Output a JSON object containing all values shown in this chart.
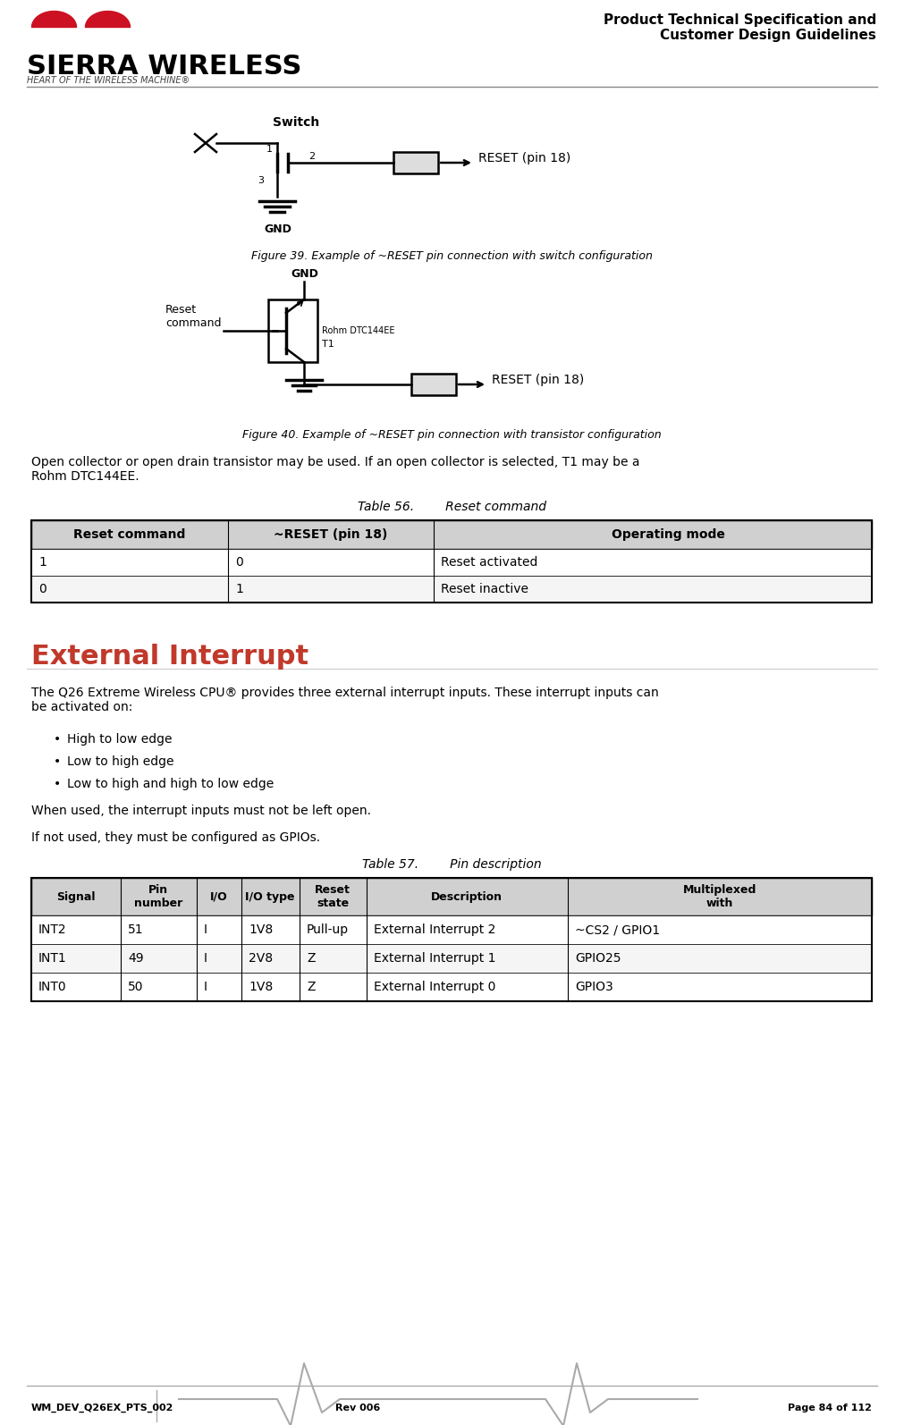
{
  "page_title_line1": "Product Technical Specification and",
  "page_title_line2": "Customer Design Guidelines",
  "footer_left": "WM_DEV_Q26EX_PTS_002",
  "footer_mid": "Rev 006",
  "footer_right": "Page 84 of 112",
  "header_tagline": "HEART OF THE WIRELESS MACHINE®",
  "fig39_caption": "Figure 39. Example of ~RESET pin connection with switch configuration",
  "fig40_caption": "Figure 40. Example of ~RESET pin connection with transistor configuration",
  "para1": "Open collector or open drain transistor may be used. If an open collector is selected, T1 may be a\nRohm DTC144EE.",
  "table56_title": "Table 56.        Reset command",
  "table56_headers": [
    "Reset command",
    "~RESET (pin 18)",
    "Operating mode"
  ],
  "table56_rows": [
    [
      "1",
      "0",
      "Reset activated"
    ],
    [
      "0",
      "1",
      "Reset inactive"
    ]
  ],
  "section_title": "External Interrupt",
  "section_color": "#C0392B",
  "para2": "The Q26 Extreme Wireless CPU® provides three external interrupt inputs. These interrupt inputs can\nbe activated on:",
  "bullets": [
    "High to low edge",
    "Low to high edge",
    "Low to high and high to low edge"
  ],
  "para3": "When used, the interrupt inputs must not be left open.",
  "para4": "If not used, they must be configured as GPIOs.",
  "table57_title": "Table 57.        Pin description",
  "table57_headers": [
    "Signal",
    "Pin\nnumber",
    "I/O",
    "I/O type",
    "Reset\nstate",
    "Description",
    "Multiplexed\nwith"
  ],
  "table57_rows": [
    [
      "INT2",
      "51",
      "I",
      "1V8",
      "Pull-up",
      "External Interrupt 2",
      "~CS2 / GPIO1"
    ],
    [
      "INT1",
      "49",
      "I",
      "2V8",
      "Z",
      "External Interrupt 1",
      "GPIO25"
    ],
    [
      "INT0",
      "50",
      "I",
      "1V8",
      "Z",
      "External Interrupt 0",
      "GPIO3"
    ]
  ],
  "divider_color": "#AAAAAA",
  "background_color": "#FFFFFF",
  "text_color": "#000000",
  "header_line_color": "#888888",
  "table_header_bg": "#D0D0D0",
  "table_border_color": "#000000"
}
